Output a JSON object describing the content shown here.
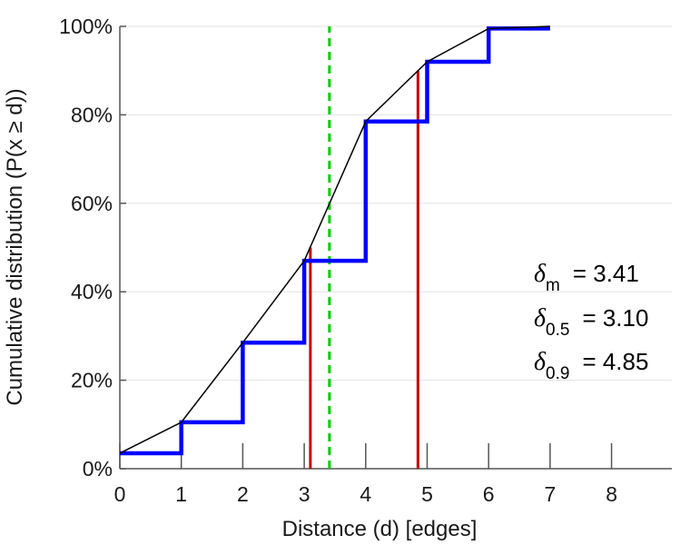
{
  "chart_data": {
    "type": "line",
    "title": "",
    "xlabel": "Distance (d) [edges]",
    "ylabel": "Cumulative distribution (P(x ≥ d))",
    "xlim": [
      0,
      9
    ],
    "ylim": [
      0,
      100
    ],
    "x_ticks": [
      "0",
      "1",
      "2",
      "3",
      "4",
      "5",
      "6",
      "7",
      "8"
    ],
    "y_ticks": [
      "0%",
      "20%",
      "40%",
      "60%",
      "80%",
      "100%"
    ],
    "grid": "horizontal",
    "series": [
      {
        "style": "step",
        "color": "#0000ff",
        "x": [
          0,
          1,
          2,
          3,
          4,
          5,
          6,
          7
        ],
        "y": [
          3.5,
          10.5,
          28.5,
          47,
          78.5,
          92,
          99.5,
          99.5
        ]
      },
      {
        "style": "line",
        "color": "#000000",
        "x": [
          0,
          1,
          2,
          3,
          4,
          5,
          6,
          7
        ],
        "y": [
          3.5,
          10.5,
          28.5,
          47,
          78.5,
          92,
          99.5,
          100
        ]
      }
    ],
    "vlines": [
      {
        "x": 3.1,
        "y_top": 50,
        "color": "#cc0000",
        "style": "solid"
      },
      {
        "x": 4.85,
        "y_top": 90,
        "color": "#cc0000",
        "style": "solid"
      },
      {
        "x": 3.41,
        "y_top": 100,
        "color": "#00cc00",
        "style": "dashed"
      }
    ],
    "annotations": [
      {
        "symbol": "δ",
        "sub": "m",
        "text": "= 3.41"
      },
      {
        "symbol": "δ",
        "sub": "0.5",
        "text": "= 3.10"
      },
      {
        "symbol": "δ",
        "sub": "0.9",
        "text": "= 4.85"
      }
    ]
  }
}
